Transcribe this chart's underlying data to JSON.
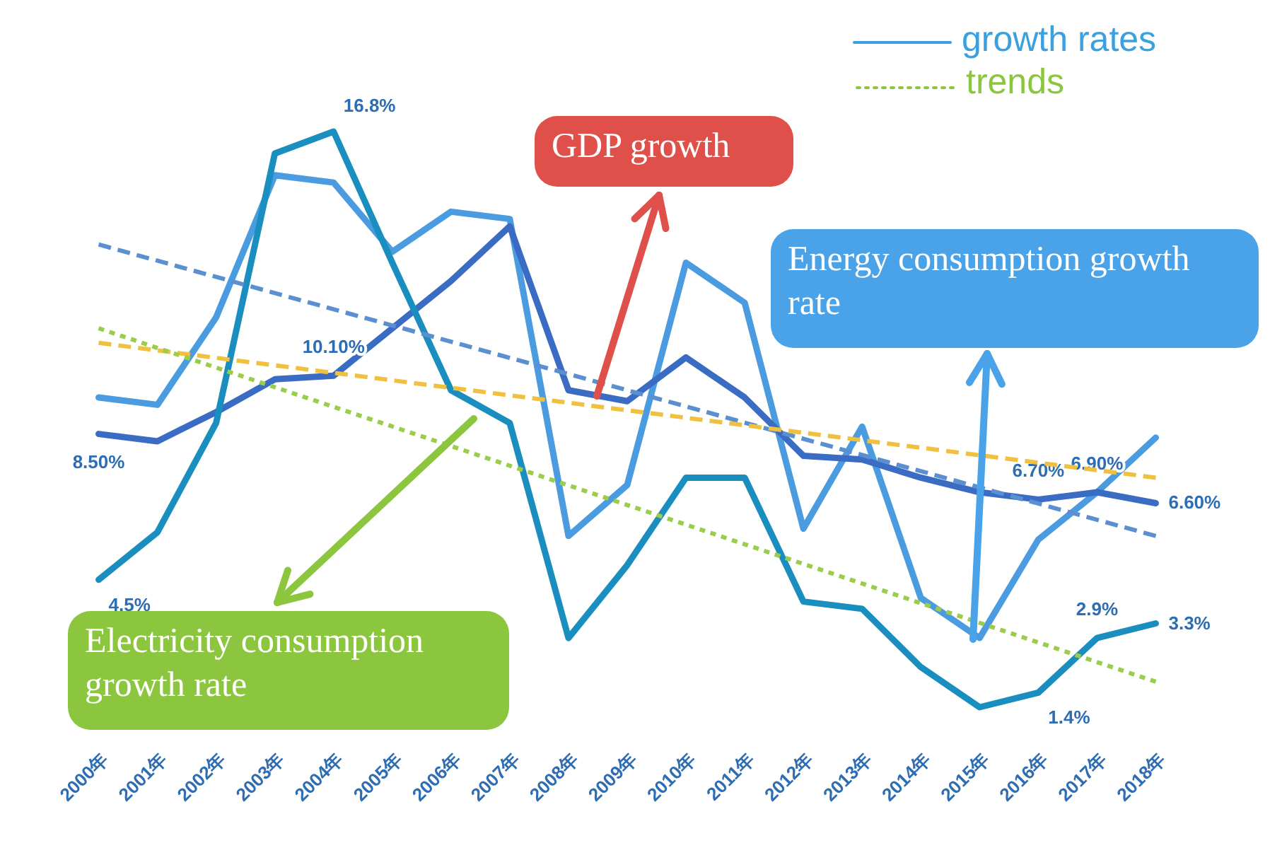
{
  "chart_data": {
    "type": "line",
    "categories": [
      "2000年",
      "2001年",
      "2002年",
      "2003年",
      "2004年",
      "2005年",
      "2006年",
      "2007年",
      "2008年",
      "2009年",
      "2010年",
      "2011年",
      "2012年",
      "2013年",
      "2014年",
      "2015年",
      "2016年",
      "2017年",
      "2018年"
    ],
    "series": [
      {
        "color": "#4a9be0",
        "values": [
          9.5,
          9.3,
          11.7,
          15.6,
          15.4,
          13.5,
          14.6,
          14.4,
          5.7,
          7.1,
          13.2,
          12.1,
          5.9,
          8.7,
          4.0,
          2.9,
          5.6,
          6.9,
          8.4
        ]
      },
      {
        "color": "#3a6cc4",
        "values": [
          8.5,
          8.3,
          9.1,
          10.0,
          10.1,
          11.4,
          12.7,
          14.2,
          9.7,
          9.4,
          10.6,
          9.5,
          7.9,
          7.8,
          7.3,
          6.9,
          6.7,
          6.9,
          6.6
        ],
        "value_labels": [
          "8.50%",
          null,
          null,
          null,
          "10.10%",
          null,
          null,
          null,
          null,
          null,
          null,
          null,
          null,
          null,
          null,
          null,
          "6.70%",
          "6.90%",
          "6.60%"
        ]
      },
      {
        "color": "#1a8fbf",
        "values": [
          4.5,
          5.8,
          8.8,
          16.2,
          16.8,
          13.2,
          9.7,
          8.8,
          2.9,
          4.9,
          7.3,
          7.3,
          3.9,
          3.7,
          2.1,
          1.0,
          1.4,
          2.9,
          3.3
        ],
        "value_labels": [
          "4.5%",
          null,
          null,
          null,
          "16.8%",
          null,
          null,
          null,
          null,
          null,
          null,
          null,
          null,
          null,
          null,
          null,
          "1.4%",
          "2.9%",
          "3.3%"
        ]
      },
      {
        "type": "line",
        "color": "#5b8fd0",
        "line_style": "dashed",
        "x": [
          "2000年",
          "2018年"
        ],
        "values": [
          13.7,
          5.7
        ]
      },
      {
        "type": "line",
        "color": "#f0c040",
        "line_style": "dashed",
        "x": [
          "2000年",
          "2018年"
        ],
        "values": [
          11.0,
          7.3
        ]
      },
      {
        "type": "line",
        "color": "#9ccc4e",
        "line_style": "dotted",
        "x": [
          "2000年",
          "2018年"
        ],
        "values": [
          11.4,
          1.7
        ]
      }
    ],
    "tick_labels": "x",
    "marker": "none",
    "annotations": [
      "growth rates",
      "trends",
      "GDP growth",
      "Energy consumption growth rate",
      "Electricity consumption growth rate"
    ]
  }
}
